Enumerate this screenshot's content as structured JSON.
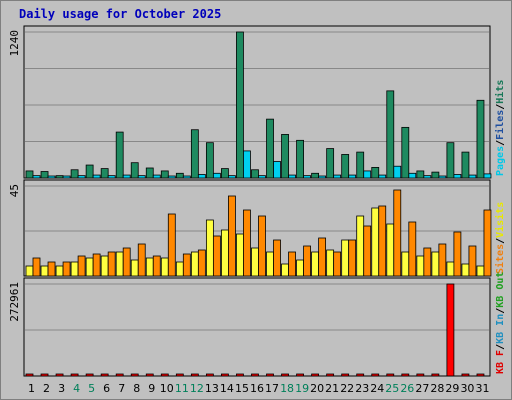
{
  "chart_data": [
    {
      "type": "bar",
      "panel": "top",
      "title": "Daily usage for October 2025",
      "ylim": [
        0,
        1240
      ],
      "ytick": "1240",
      "legend": [
        {
          "text": "Pages",
          "color": "#00c8e8"
        },
        {
          "text": "Files",
          "color": "#2050a0"
        },
        {
          "text": "Hits",
          "color": "#187858"
        }
      ],
      "legend_separator": "/",
      "series": [
        {
          "name": "Hits",
          "color": "#1e8a60",
          "values": [
            60,
            55,
            20,
            70,
            110,
            80,
            390,
            130,
            85,
            60,
            40,
            410,
            300,
            80,
            1240,
            70,
            500,
            370,
            320,
            40,
            250,
            200,
            220,
            90,
            740,
            430,
            60,
            50,
            300,
            220,
            660
          ]
        },
        {
          "name": "Pages",
          "color": "#00d0f0",
          "values": [
            20,
            15,
            8,
            20,
            25,
            20,
            25,
            20,
            25,
            15,
            12,
            30,
            40,
            20,
            230,
            20,
            140,
            25,
            20,
            12,
            25,
            25,
            60,
            25,
            100,
            40,
            20,
            12,
            30,
            25,
            35
          ]
        }
      ]
    },
    {
      "type": "bar",
      "panel": "middle",
      "ylim": [
        0,
        45
      ],
      "ytick": "45",
      "legend": [
        {
          "text": "Sites",
          "color": "#f08010"
        },
        {
          "text": "Visits",
          "color": "#e8e800"
        }
      ],
      "legend_separator": "/",
      "series": [
        {
          "name": "Visits",
          "color": "#ffff40",
          "values": [
            5,
            5,
            5,
            7,
            9,
            10,
            12,
            8,
            9,
            9,
            7,
            12,
            28,
            23,
            21,
            14,
            12,
            6,
            8,
            12,
            13,
            18,
            30,
            34,
            26,
            12,
            10,
            12,
            7,
            6,
            5
          ]
        },
        {
          "name": "Sites",
          "color": "#ff8800",
          "values": [
            9,
            7,
            7,
            10,
            11,
            12,
            14,
            16,
            10,
            31,
            11,
            13,
            20,
            40,
            33,
            30,
            18,
            12,
            15,
            19,
            12,
            18,
            25,
            35,
            43,
            27,
            14,
            16,
            22,
            15,
            33
          ]
        }
      ]
    },
    {
      "type": "bar",
      "panel": "bottom",
      "ylim": [
        0,
        272961
      ],
      "ytick": "272961",
      "legend": [
        {
          "text": "KB F",
          "color": "#e00000"
        },
        {
          "text": "KB In",
          "color": "#2090c0"
        },
        {
          "text": "KB Out",
          "color": "#20a020"
        }
      ],
      "legend_separator": "/",
      "series": [
        {
          "name": "KB F",
          "color": "#ff0000",
          "values": [
            1500,
            1500,
            1500,
            1500,
            1500,
            1500,
            1500,
            1500,
            1500,
            1500,
            1500,
            1500,
            1500,
            1500,
            1500,
            1500,
            1500,
            1500,
            1500,
            1500,
            1500,
            1500,
            1500,
            1500,
            1500,
            1500,
            1500,
            1500,
            272961,
            1500,
            1500
          ]
        }
      ]
    }
  ],
  "days": [
    "1",
    "2",
    "3",
    "4",
    "5",
    "6",
    "7",
    "8",
    "9",
    "10",
    "11",
    "12",
    "13",
    "14",
    "15",
    "16",
    "17",
    "18",
    "19",
    "20",
    "21",
    "22",
    "23",
    "24",
    "25",
    "26",
    "27",
    "28",
    "29",
    "30",
    "31"
  ],
  "weekend_days": [
    "4",
    "5",
    "11",
    "12",
    "18",
    "19",
    "25",
    "26"
  ],
  "colors": {
    "weekday": "#000000",
    "weekend": "#00805a",
    "panel_bg": "#c0c0c0",
    "grid": "#888888",
    "title": "#0000bb"
  }
}
